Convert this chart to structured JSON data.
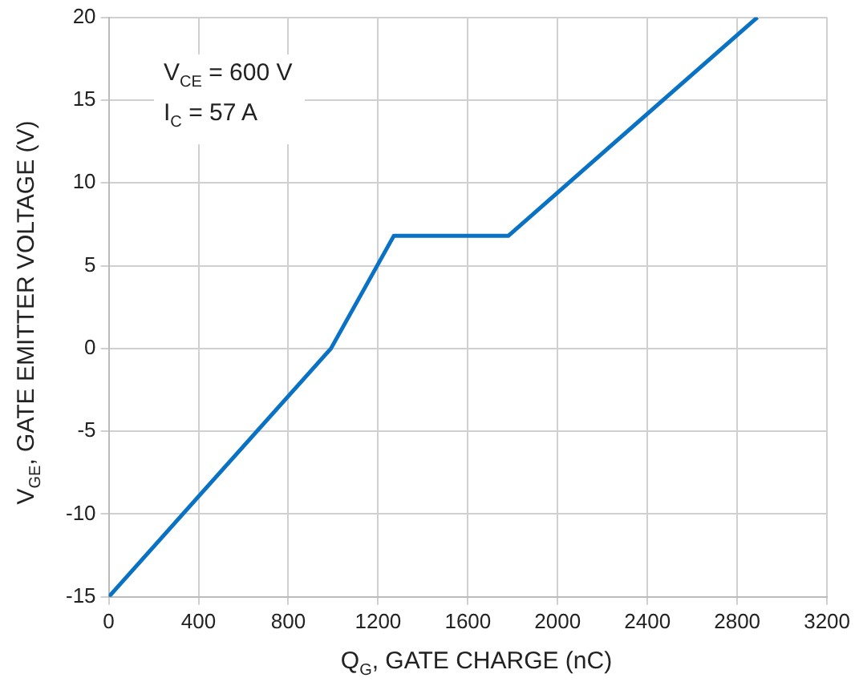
{
  "chart_data": {
    "type": "line",
    "xlabel": "Q$_{G}$, GATE CHARGE (nC)",
    "ylabel": "V$_{GE}$, GATE EMITTER VOLTAGE (V)",
    "annotations": [
      "V$_{CE}$ = 600 V",
      "I$_{C}$ = 57 A"
    ],
    "series": [
      {
        "color": "#0a72c4",
        "x": [
          0,
          990,
          1270,
          1780,
          2890
        ],
        "values": [
          -15,
          0,
          6.8,
          6.8,
          20
        ]
      }
    ],
    "xlim": [
      0,
      3200
    ],
    "xticks": [
      0,
      400,
      800,
      1200,
      1600,
      2000,
      2400,
      2800,
      3200
    ],
    "ylim": [
      -15,
      20
    ],
    "yticks": [
      -15,
      -10,
      -5,
      0,
      5,
      10,
      15,
      20
    ],
    "grid": true,
    "legend": false,
    "marker": "none",
    "line_style": "solid"
  }
}
